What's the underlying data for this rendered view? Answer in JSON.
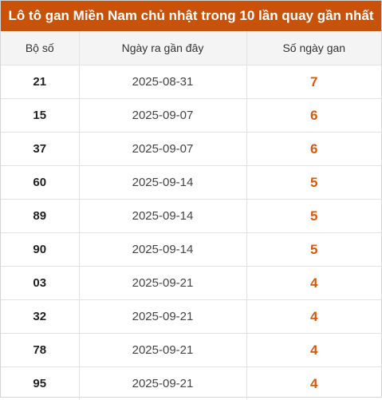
{
  "title": "Lô tô gan Miền Nam chủ nhật trong 10 lần quay gần nhất",
  "columns": {
    "number": "Bộ số",
    "last_date": "Ngày ra gần đây",
    "days": "Số ngày gan"
  },
  "rows": [
    {
      "number": "21",
      "last_date": "2025-08-31",
      "days": "7"
    },
    {
      "number": "15",
      "last_date": "2025-09-07",
      "days": "6"
    },
    {
      "number": "37",
      "last_date": "2025-09-07",
      "days": "6"
    },
    {
      "number": "60",
      "last_date": "2025-09-14",
      "days": "5"
    },
    {
      "number": "89",
      "last_date": "2025-09-14",
      "days": "5"
    },
    {
      "number": "90",
      "last_date": "2025-09-14",
      "days": "5"
    },
    {
      "number": "03",
      "last_date": "2025-09-21",
      "days": "4"
    },
    {
      "number": "32",
      "last_date": "2025-09-21",
      "days": "4"
    },
    {
      "number": "78",
      "last_date": "2025-09-21",
      "days": "4"
    },
    {
      "number": "95",
      "last_date": "2025-09-21",
      "days": "4"
    }
  ],
  "colors": {
    "header_bg": "#c9520a",
    "accent_value": "#d25a0e"
  }
}
